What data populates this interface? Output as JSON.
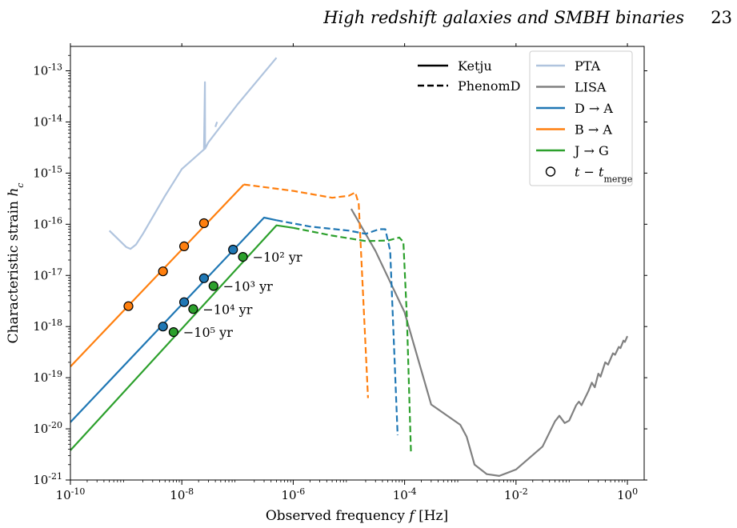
{
  "header": {
    "running_title": "High redshift galaxies and SMBH binaries",
    "page_number": "23"
  },
  "chart_data": {
    "type": "line",
    "xlabel": "Observed frequency f [Hz]",
    "ylabel": "Characteristic strain h_c",
    "xscale": "log",
    "yscale": "log",
    "xlim": [
      1e-10,
      2.0
    ],
    "ylim": [
      1e-21,
      3e-13
    ],
    "x_tick_labels": [
      "10^-10",
      "10^-8",
      "10^-6",
      "10^-4",
      "10^-2",
      "10^0"
    ],
    "y_tick_labels": [
      "10^-21",
      "10^-20",
      "10^-19",
      "10^-18",
      "10^-17",
      "10^-16",
      "10^-15",
      "10^-14",
      "10^-13"
    ],
    "grid": false,
    "legend_linestyles": {
      "placement": "top-center",
      "entries": [
        {
          "label": "Ketju",
          "style": "solid"
        },
        {
          "label": "PhenomD",
          "style": "dashed"
        }
      ]
    },
    "legend_series": {
      "placement": "top-right",
      "entries": [
        {
          "label": "PTA",
          "color": "#b0c4de",
          "kind": "line"
        },
        {
          "label": "LISA",
          "color": "#808080",
          "kind": "line"
        },
        {
          "label": "D → A",
          "color": "#1f77b4",
          "kind": "line"
        },
        {
          "label": "B → A",
          "color": "#ff7f0e",
          "kind": "line"
        },
        {
          "label": "J → G",
          "color": "#2ca02c",
          "kind": "line"
        },
        {
          "label": "t − t_merge",
          "color": "#000000",
          "kind": "marker"
        }
      ]
    },
    "series": [
      {
        "name": "PTA",
        "color": "#b0c4de",
        "style": "solid",
        "segments": [
          [
            [
              5e-10,
              7.5e-17
            ],
            [
              1e-09,
              3.6e-17
            ],
            [
              1.2e-09,
              3.3e-17
            ],
            [
              1.5e-09,
              4e-17
            ],
            [
              2e-09,
              6.5e-17
            ],
            [
              5e-09,
              3.6e-16
            ],
            [
              1e-08,
              1.2e-15
            ],
            [
              2.5e-08,
              2.9e-15
            ],
            [
              2.6e-08,
              6e-14
            ],
            [
              2.62e-08,
              3e-15
            ],
            [
              3e-08,
              4e-15
            ],
            [
              1e-07,
              2.2e-14
            ],
            [
              5e-07,
              1.8e-13
            ]
          ],
          [
            [
              4e-08,
              8e-15
            ],
            [
              4.3e-08,
              1e-14
            ]
          ]
        ]
      },
      {
        "name": "LISA",
        "color": "#808080",
        "style": "solid",
        "segments": [
          [
            [
              1.1e-05,
              2e-16
            ],
            [
              3e-05,
              3e-17
            ],
            [
              0.0001,
              1.9e-18
            ],
            [
              0.0003,
              3e-20
            ],
            [
              0.001,
              1.2e-20
            ],
            [
              0.0013,
              7e-21
            ],
            [
              0.0018,
              2e-21
            ],
            [
              0.003,
              1.3e-21
            ],
            [
              0.005,
              1.2e-21
            ],
            [
              0.01,
              1.6e-21
            ],
            [
              0.03,
              4.5e-21
            ],
            [
              0.05,
              1.4e-20
            ],
            [
              0.06,
              1.8e-20
            ],
            [
              0.075,
              1.3e-20
            ],
            [
              0.09,
              1.45e-20
            ],
            [
              0.12,
              2.9e-20
            ],
            [
              0.135,
              3.4e-20
            ],
            [
              0.15,
              2.9e-20
            ],
            [
              0.2,
              5.5e-20
            ],
            [
              0.23,
              8e-20
            ],
            [
              0.26,
              6.5e-20
            ],
            [
              0.3,
              1.2e-19
            ],
            [
              0.33,
              1.05e-19
            ],
            [
              0.4,
              2e-19
            ],
            [
              0.45,
              1.8e-19
            ],
            [
              0.55,
              3e-19
            ],
            [
              0.6,
              2.8e-19
            ],
            [
              0.7,
              4e-19
            ],
            [
              0.75,
              3.8e-19
            ],
            [
              0.85,
              5.3e-19
            ],
            [
              0.9,
              5e-19
            ],
            [
              1.0,
              6.5e-19
            ]
          ]
        ]
      },
      {
        "name": "B → A",
        "color": "#ff7f0e",
        "style": "solid",
        "segments": [
          [
            [
              1e-10,
              1.65e-19
            ],
            [
              1.3e-07,
              6e-16
            ]
          ]
        ]
      },
      {
        "name": "B → A",
        "color": "#ff7f0e",
        "style": "dashed",
        "segments": [
          [
            [
              1.3e-07,
              6e-16
            ],
            [
              1e-06,
              4.5e-16
            ],
            [
              5e-06,
              3.3e-16
            ],
            [
              1e-05,
              3.6e-16
            ],
            [
              1.3e-05,
              4.2e-16
            ],
            [
              1.5e-05,
              2.5e-16
            ],
            [
              2.2e-05,
              4e-20
            ]
          ]
        ]
      },
      {
        "name": "D → A",
        "color": "#1f77b4",
        "style": "solid",
        "segments": [
          [
            [
              1e-10,
              1.35e-20
            ],
            [
              3e-07,
              1.35e-16
            ],
            [
              5e-07,
              1.2e-16
            ]
          ]
        ]
      },
      {
        "name": "D → A",
        "color": "#1f77b4",
        "style": "dashed",
        "segments": [
          [
            [
              5e-07,
              1.2e-16
            ],
            [
              2e-06,
              9e-17
            ],
            [
              1e-05,
              7.5e-17
            ],
            [
              2e-05,
              6.5e-17
            ],
            [
              3.5e-05,
              8e-17
            ],
            [
              4.5e-05,
              8e-17
            ],
            [
              5.5e-05,
              3e-17
            ],
            [
              7.5e-05,
              7.5e-21
            ]
          ]
        ]
      },
      {
        "name": "J → G",
        "color": "#2ca02c",
        "style": "solid",
        "segments": [
          [
            [
              1e-10,
              3.8e-21
            ],
            [
              5e-07,
              9.5e-17
            ],
            [
              1e-06,
              8.5e-17
            ]
          ]
        ]
      },
      {
        "name": "J → G",
        "color": "#2ca02c",
        "style": "dashed",
        "segments": [
          [
            [
              1e-06,
              8.5e-17
            ],
            [
              5e-06,
              6e-17
            ],
            [
              2e-05,
              4.7e-17
            ],
            [
              5e-05,
              4.8e-17
            ],
            [
              8e-05,
              5.5e-17
            ],
            [
              9.5e-05,
              4.5e-17
            ],
            [
              0.00011,
              1.5e-18
            ],
            [
              0.00013,
              3.3e-21
            ]
          ]
        ]
      }
    ],
    "markers": [
      {
        "series": "B → A",
        "color": "#ff7f0e",
        "points": [
          [
            1.1e-09,
            2.5e-18
          ],
          [
            4.6e-09,
            1.2e-17
          ],
          [
            1.1e-08,
            3.7e-17
          ],
          [
            2.5e-08,
            1.05e-16
          ]
        ]
      },
      {
        "series": "D → A",
        "color": "#1f77b4",
        "points": [
          [
            4.6e-09,
            1e-18
          ],
          [
            1.1e-08,
            3e-18
          ],
          [
            2.5e-08,
            8.8e-18
          ],
          [
            8.3e-08,
            3.2e-17
          ]
        ]
      },
      {
        "series": "J → G",
        "color": "#2ca02c",
        "points": [
          [
            7.1e-09,
            7.8e-19
          ],
          [
            1.6e-08,
            2.2e-18
          ],
          [
            3.7e-08,
            6.2e-18
          ],
          [
            1.25e-07,
            2.3e-17
          ]
        ]
      }
    ],
    "annotations": [
      {
        "text": "−10² yr",
        "x": 1.25e-07,
        "y": 2.3e-17
      },
      {
        "text": "−10³ yr",
        "x": 3.7e-08,
        "y": 6.2e-18
      },
      {
        "text": "−10⁴ yr",
        "x": 1.6e-08,
        "y": 2.2e-18
      },
      {
        "text": "−10⁵ yr",
        "x": 7.1e-09,
        "y": 7.8e-19
      }
    ]
  }
}
